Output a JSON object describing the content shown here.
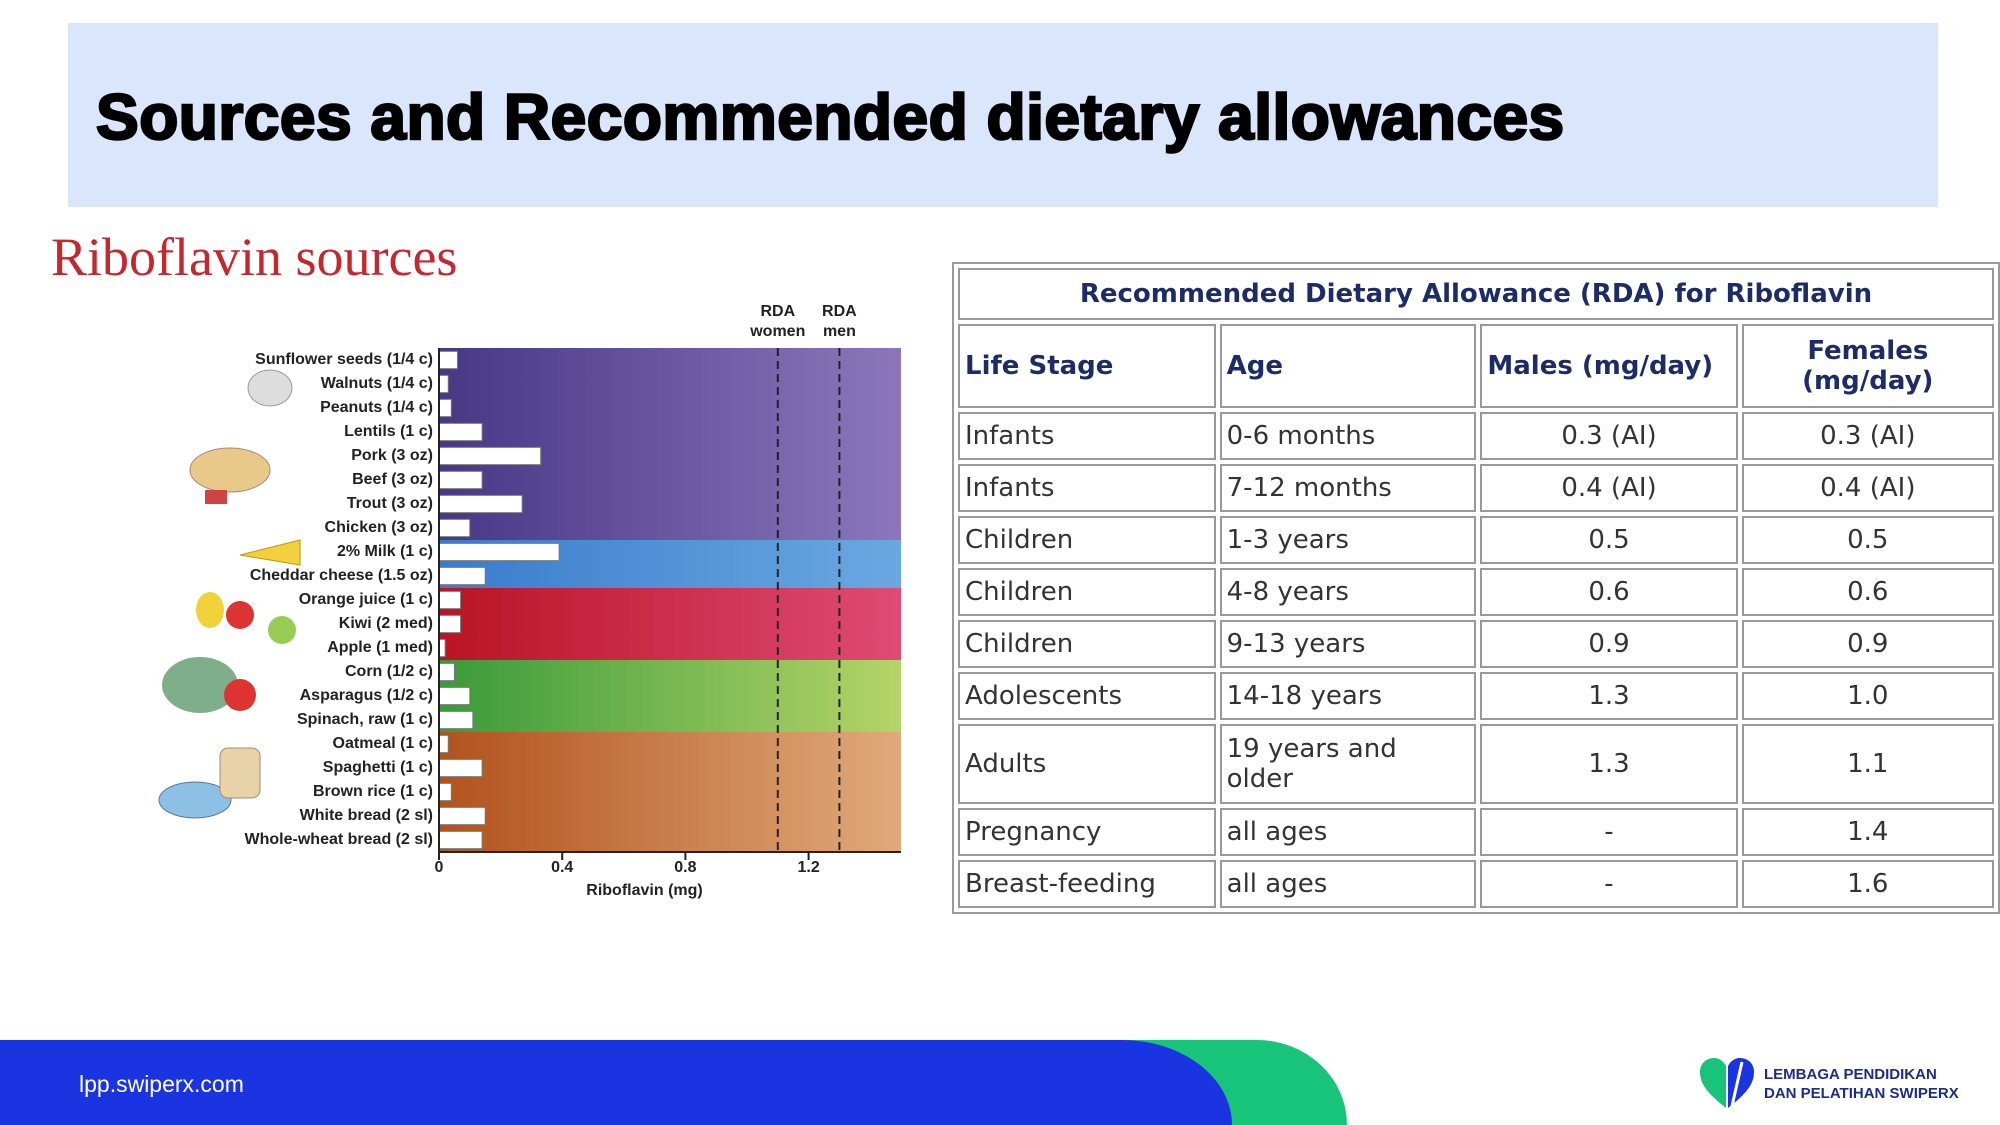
{
  "header": {
    "title": "Sources and Recommended dietary allowances"
  },
  "chart_data": {
    "type": "bar",
    "orientation": "horizontal",
    "title": "Riboflavin sources",
    "x_label": "Riboflavin (mg)",
    "categories": [
      "Sunflower seeds (1/4 c)",
      "Walnuts (1/4 c)",
      "Peanuts (1/4 c)",
      "Lentils (1 c)",
      "Pork (3 oz)",
      "Beef (3 oz)",
      "Trout (3 oz)",
      "Chicken (3 oz)",
      "2% Milk (1 c)",
      "Cheddar cheese (1.5 oz)",
      "Orange juice (1 c)",
      "Kiwi (2 med)",
      "Apple (1 med)",
      "Corn (1/2 c)",
      "Asparagus (1/2 c)",
      "Spinach, raw (1 c)",
      "Oatmeal (1 c)",
      "Spaghetti (1 c)",
      "Brown rice (1 c)",
      "White bread (2 sl)",
      "Whole-wheat bread (2 sl)"
    ],
    "values": [
      0.06,
      0.03,
      0.04,
      0.14,
      0.33,
      0.14,
      0.27,
      0.1,
      0.39,
      0.15,
      0.07,
      0.07,
      0.02,
      0.05,
      0.1,
      0.11,
      0.03,
      0.14,
      0.04,
      0.15,
      0.14
    ],
    "color": "#ffffff",
    "xlim": [
      0,
      1.5
    ],
    "xticks": [
      0,
      0.4,
      0.8,
      1.2
    ],
    "reference_lines": [
      {
        "label": "RDA women",
        "value": 1.1
      },
      {
        "label": "RDA men",
        "value": 1.3
      }
    ]
  },
  "table": {
    "title": "Recommended Dietary Allowance (RDA) for Riboflavin",
    "columns": [
      "Life Stage",
      "Age",
      "Males (mg/day)",
      "Females (mg/day)"
    ],
    "rows": [
      [
        "Infants",
        "0-6 months",
        "0.3 (AI)",
        "0.3 (AI)"
      ],
      [
        "Infants",
        "7-12 months",
        "0.4 (AI)",
        "0.4 (AI)"
      ],
      [
        "Children",
        "1-3 years",
        "0.5",
        "0.5"
      ],
      [
        "Children",
        "4-8 years",
        "0.6",
        "0.6"
      ],
      [
        "Children",
        "9-13 years",
        "0.9",
        "0.9"
      ],
      [
        "Adolescents",
        "14-18 years",
        "1.3",
        "1.0"
      ],
      [
        "Adults",
        "19 years and older",
        "1.3",
        "1.1"
      ],
      [
        "Pregnancy",
        "all ages",
        "-",
        "1.4"
      ],
      [
        "Breast-feeding",
        "all ages",
        "-",
        "1.6"
      ]
    ]
  },
  "footer": {
    "url": "lpp.swiperx.com",
    "logo_line1": "LEMBAGA PENDIDIKAN",
    "logo_line2": "DAN PELATIHAN SWIPERX"
  }
}
